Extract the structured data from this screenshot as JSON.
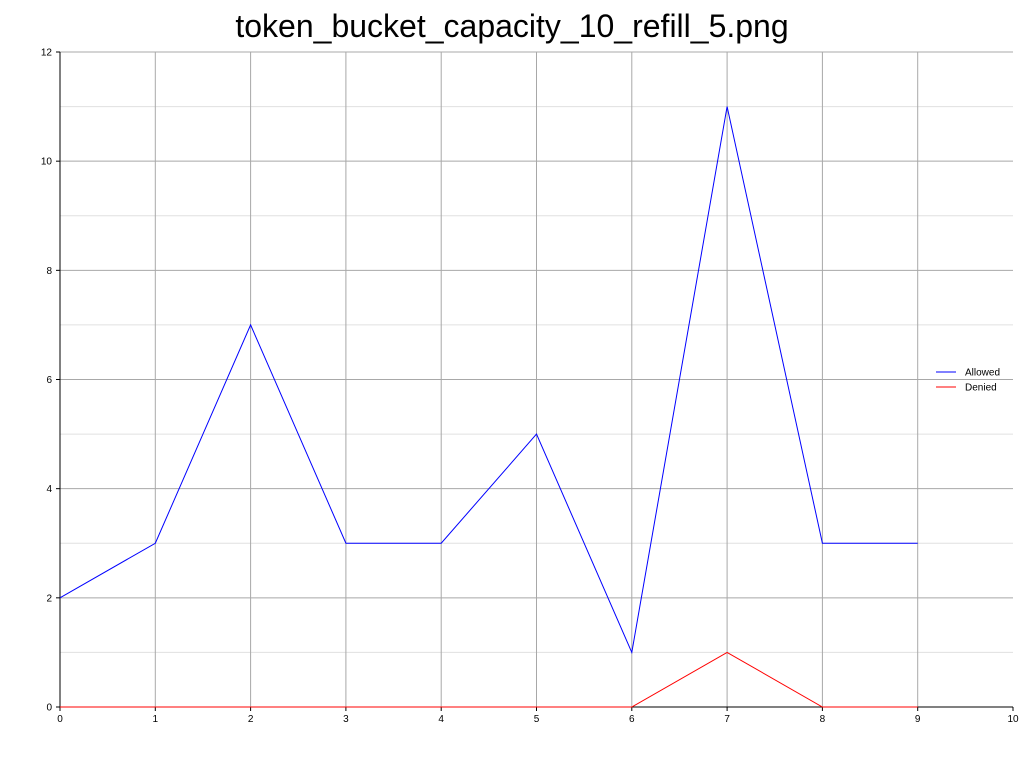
{
  "chart_data": {
    "type": "line",
    "title": "token_bucket_capacity_10_refill_5.png",
    "xlabel": "",
    "ylabel": "",
    "xlim": [
      0,
      10
    ],
    "ylim": [
      0,
      12
    ],
    "x_ticks": [
      0,
      1,
      2,
      3,
      4,
      5,
      6,
      7,
      8,
      9,
      10
    ],
    "y_ticks": [
      0,
      2,
      4,
      6,
      8,
      10,
      12
    ],
    "grid": true,
    "legend_position": "right",
    "x": [
      0,
      1,
      2,
      3,
      4,
      5,
      6,
      7,
      8,
      9
    ],
    "series": [
      {
        "name": "Allowed",
        "color": "#0000ff",
        "values": [
          2,
          3,
          7,
          3,
          3,
          5,
          1,
          11,
          3,
          3
        ]
      },
      {
        "name": "Denied",
        "color": "#ff0000",
        "values": [
          0,
          0,
          0,
          0,
          0,
          0,
          0,
          1,
          0,
          0
        ]
      }
    ]
  }
}
